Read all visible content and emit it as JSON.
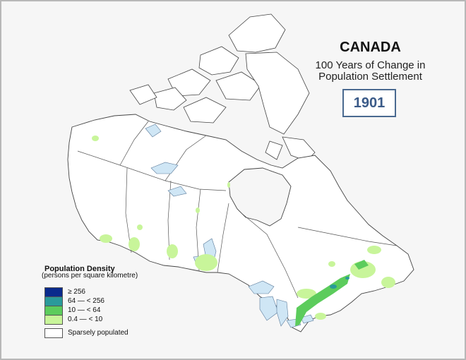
{
  "title": "CANADA",
  "subtitle_line1": "100 Years of Change in",
  "subtitle_line2": "Population Settlement",
  "year": "1901",
  "legend": {
    "title": "Population Density",
    "subtitle": "(persons per square kilometre)",
    "classes": [
      {
        "label": "≥ 256",
        "color": "#0a2a8c"
      },
      {
        "label": "64 — < 256",
        "color": "#2a9a9a"
      },
      {
        "label": "10 — < 64",
        "color": "#5ccc5c"
      },
      {
        "label": "0.4 — < 10",
        "color": "#c8f59a"
      }
    ],
    "sparse_label": "Sparsely populated",
    "sparse_color": "#ffffff"
  },
  "colors": {
    "water": "#cfe6f5",
    "land": "#ffffff",
    "background": "#f6f6f6"
  }
}
